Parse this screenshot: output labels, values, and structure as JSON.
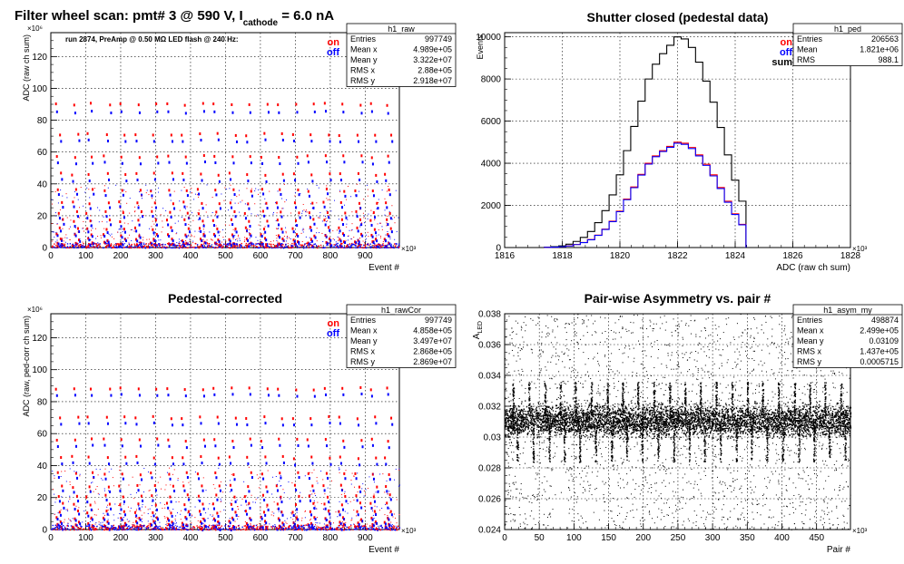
{
  "figure": {
    "title_main": "Filter wheel scan: pmt#   3 @   590 V, I",
    "title_sub": "cathode",
    "title_tail": "  = 6.0 nA"
  },
  "chart_data": [
    {
      "id": "raw",
      "type": "scatter",
      "title": "",
      "run_note": "run 2874, PreAmp @ 0.50 MΩ  LED flash @  240 Hz:",
      "xlabel": "Event #",
      "ylabel": "ADC (raw ch sum)",
      "x_exponent": "×10³",
      "y_exponent": "×10⁶",
      "xlim": [
        0,
        997.749
      ],
      "ylim": [
        0,
        135
      ],
      "xticks": [
        0,
        100,
        200,
        300,
        400,
        500,
        600,
        700,
        800,
        900
      ],
      "yticks": [
        0,
        20,
        40,
        60,
        80,
        100,
        120
      ],
      "grid": true,
      "legend": [
        {
          "name": "on",
          "color": "#ff0000"
        },
        {
          "name": "off",
          "color": "#0000ff"
        }
      ],
      "legend_position": "top-right",
      "stats": {
        "name": "h1_raw",
        "rows": [
          {
            "label": "Entries",
            "value": "997749"
          },
          {
            "label": "Mean x",
            "value": "4.989e+05"
          },
          {
            "label": "Mean y",
            "value": "3.322e+07"
          },
          {
            "label": "RMS x",
            "value": "2.88e+05"
          },
          {
            "label": "RMS y",
            "value": "2.918e+07"
          }
        ]
      },
      "levels_on": [
        90,
        71,
        57,
        46,
        36,
        28,
        22,
        17,
        12,
        8,
        5,
        3,
        1.5
      ],
      "levels_off": [
        85,
        67,
        53,
        42,
        33,
        25,
        19,
        14,
        10,
        7,
        4,
        2.5,
        1
      ],
      "step_x": [
        22,
        68,
        109,
        158,
        202,
        248,
        292,
        338,
        382,
        428,
        472,
        518,
        562,
        608,
        652,
        698,
        742,
        788,
        832,
        878,
        922,
        962
      ]
    },
    {
      "id": "ped",
      "type": "line",
      "title": "Shutter closed (pedestal data)",
      "xlabel": "ADC (raw ch sum)",
      "ylabel": "Events",
      "x_exponent": "×10³",
      "xlim": [
        1816,
        1828
      ],
      "ylim": [
        0,
        10200
      ],
      "xticks": [
        1816,
        1818,
        1820,
        1822,
        1824,
        1826,
        1828
      ],
      "yticks": [
        0,
        2000,
        4000,
        6000,
        8000,
        10000
      ],
      "grid": true,
      "legend": [
        {
          "name": "on",
          "color": "#ff0000"
        },
        {
          "name": "off",
          "color": "#0000ff"
        },
        {
          "name": "sum",
          "color": "#000000"
        }
      ],
      "legend_position": "top-right",
      "stats": {
        "name": "h1_ped",
        "rows": [
          {
            "label": "Entries",
            "value": "206563"
          },
          {
            "label": "Mean",
            "value": "1.821e+06"
          },
          {
            "label": "RMS",
            "value": "988.1"
          }
        ]
      },
      "bins_x": [
        1817.5,
        1817.75,
        1818.0,
        1818.25,
        1818.5,
        1818.75,
        1819.0,
        1819.25,
        1819.5,
        1819.75,
        1820.0,
        1820.25,
        1820.5,
        1820.75,
        1821.0,
        1821.25,
        1821.5,
        1821.75,
        1822.0,
        1822.25,
        1822.5,
        1822.75,
        1823.0,
        1823.25,
        1823.5,
        1823.75,
        1824.0,
        1824.25
      ],
      "series": [
        {
          "name": "sum",
          "color": "#000000",
          "values": [
            20,
            40,
            80,
            160,
            290,
            480,
            760,
            1180,
            1750,
            2500,
            3450,
            4600,
            5750,
            6950,
            8000,
            8700,
            9200,
            9600,
            10000,
            9900,
            9500,
            8800,
            7900,
            6900,
            5700,
            4400,
            3200,
            2200
          ]
        },
        {
          "name": "on",
          "color": "#ff0000",
          "values": [
            10,
            20,
            40,
            80,
            145,
            240,
            380,
            590,
            875,
            1250,
            1725,
            2300,
            2875,
            3475,
            4000,
            4350,
            4600,
            4800,
            5000,
            4950,
            4750,
            4400,
            3950,
            3450,
            2850,
            2200,
            1600,
            1100
          ]
        },
        {
          "name": "off",
          "color": "#0000ff",
          "values": [
            10,
            20,
            40,
            75,
            140,
            235,
            370,
            580,
            860,
            1230,
            1700,
            2270,
            2840,
            3440,
            3960,
            4310,
            4560,
            4760,
            4950,
            4900,
            4700,
            4350,
            3900,
            3400,
            2800,
            2150,
            1570,
            1080
          ]
        }
      ]
    },
    {
      "id": "rawcor",
      "type": "scatter",
      "title": "Pedestal-corrected",
      "xlabel": "Event #",
      "ylabel": "ADC (raw, ped-corr ch sum)",
      "x_exponent": "×10³",
      "y_exponent": "×10⁶",
      "xlim": [
        0,
        997.749
      ],
      "ylim": [
        0,
        135
      ],
      "xticks": [
        0,
        100,
        200,
        300,
        400,
        500,
        600,
        700,
        800,
        900
      ],
      "yticks": [
        0,
        20,
        40,
        60,
        80,
        100,
        120
      ],
      "grid": true,
      "legend": [
        {
          "name": "on",
          "color": "#ff0000"
        },
        {
          "name": "off",
          "color": "#0000ff"
        }
      ],
      "legend_position": "top-right",
      "stats": {
        "name": "h1_rawCor",
        "rows": [
          {
            "label": "Entries",
            "value": "997749"
          },
          {
            "label": "Mean x",
            "value": "4.858e+05"
          },
          {
            "label": "Mean y",
            "value": "3.497e+07"
          },
          {
            "label": "RMS x",
            "value": "2.868e+05"
          },
          {
            "label": "RMS y",
            "value": "2.869e+07"
          }
        ]
      },
      "levels_on": [
        88,
        70,
        56,
        45,
        35,
        27,
        21,
        16,
        11,
        7,
        4.5,
        2.5,
        1
      ],
      "levels_off": [
        84,
        66,
        52,
        41,
        32,
        24,
        18,
        13,
        9,
        6,
        3.5,
        2,
        0.5
      ],
      "step_x": [
        22,
        68,
        109,
        158,
        202,
        248,
        292,
        338,
        382,
        428,
        472,
        518,
        562,
        608,
        652,
        698,
        742,
        788,
        832,
        878,
        922,
        962
      ]
    },
    {
      "id": "asym",
      "type": "scatter",
      "title": "Pair-wise Asymmetry vs. pair #",
      "xlabel": "Pair #",
      "ylabel": "A_LED",
      "x_exponent": "×10³",
      "xlim": [
        0,
        498.874
      ],
      "ylim": [
        0.024,
        0.038
      ],
      "xticks": [
        0,
        50,
        100,
        150,
        200,
        250,
        300,
        350,
        400,
        450
      ],
      "yticks": [
        0.024,
        0.026,
        0.028,
        0.03,
        0.032,
        0.034,
        0.036,
        0.038
      ],
      "grid": true,
      "stats": {
        "name": "h1_asym_my",
        "rows": [
          {
            "label": "Entries",
            "value": "498874"
          },
          {
            "label": "Mean x",
            "value": "2.499e+05"
          },
          {
            "label": "Mean y",
            "value": "0.03109"
          },
          {
            "label": "RMS x",
            "value": "1.437e+05"
          },
          {
            "label": "RMS y",
            "value": "0.0005715"
          }
        ]
      },
      "band_center": 0.03109,
      "band_halfwidth": 0.0006,
      "spike_x": [
        12,
        35,
        58,
        80,
        102,
        125,
        148,
        170,
        192,
        215,
        238,
        260,
        282,
        305,
        328,
        350,
        372,
        395,
        418,
        440,
        462,
        485
      ]
    }
  ]
}
